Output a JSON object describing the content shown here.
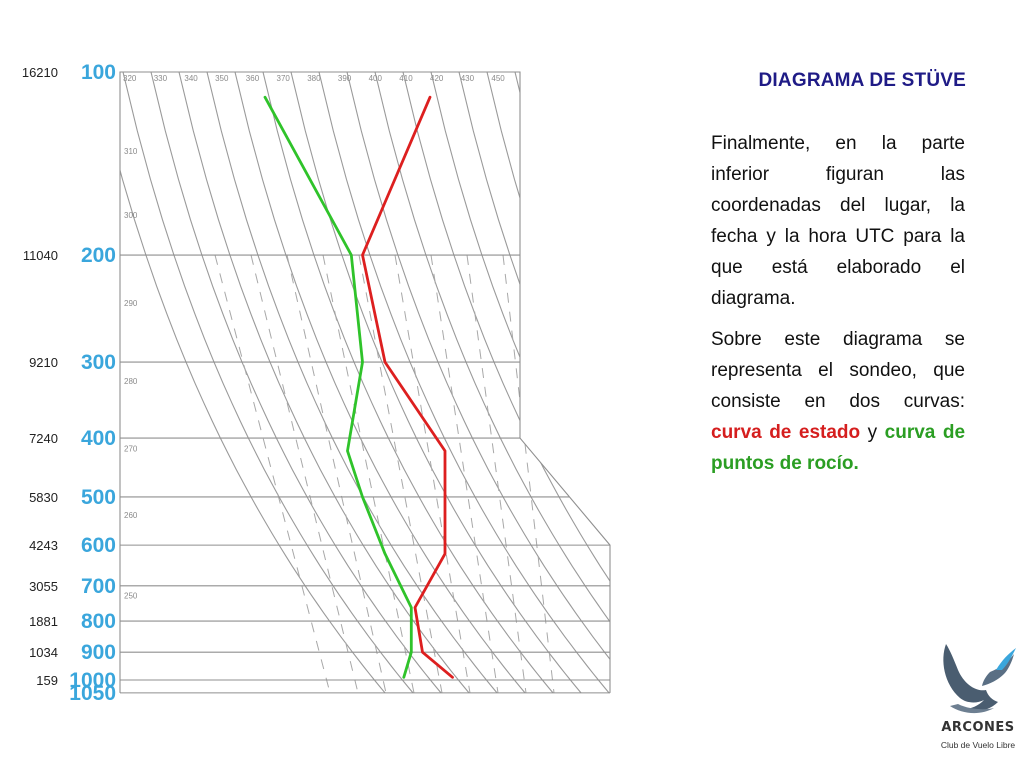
{
  "slide": {
    "title": "DIAGRAMA DE STÜVE",
    "paragraph1": "Finalmente, en la parte inferior figuran las coordenadas del lugar, la fecha y la hora UTC para la que está elaborado el diagrama.",
    "paragraph2_intro": "Sobre este diagrama se representa el sondeo, que consiste en dos curvas: ",
    "paragraph2_red": "curva de estado",
    "paragraph2_connector": " y ",
    "paragraph2_green": "curva de puntos de rocío",
    "paragraph2_end": ".",
    "colors": {
      "title": "#1f1b86",
      "red_term": "#d51e1e",
      "green_term": "#2b9e23"
    }
  },
  "logo": {
    "icon": "eagle-icon",
    "name": "ARCONES",
    "subtitle": "Club de Vuelo Libre"
  },
  "chart_data": {
    "type": "line",
    "y_axis": {
      "quantity": "pressure (hPa)",
      "scale": "log",
      "reversed": true,
      "tick_labels": [
        "100",
        "200",
        "300",
        "400",
        "500",
        "600",
        "700",
        "800",
        "900",
        "1000",
        "1050"
      ],
      "ticks": [
        100,
        200,
        300,
        400,
        500,
        600,
        700,
        800,
        900,
        1000,
        1050
      ],
      "color": "#3aa6dc"
    },
    "heights": [
      {
        "p": 100,
        "label": "16210"
      },
      {
        "p": 200,
        "label": "11040"
      },
      {
        "p": 300,
        "label": "9210"
      },
      {
        "p": 400,
        "label": "7240"
      },
      {
        "p": 500,
        "label": "5830"
      },
      {
        "p": 600,
        "label": "4243"
      },
      {
        "p": 700,
        "label": "3055"
      },
      {
        "p": 800,
        "label": "1881"
      },
      {
        "p": 900,
        "label": "1034"
      },
      {
        "p": 1000,
        "label": "159"
      }
    ],
    "top_theta_labels": [
      "320",
      "330",
      "340",
      "350",
      "360",
      "370",
      "380",
      "390",
      "400",
      "410",
      "420",
      "430",
      "450"
    ],
    "side_theta_labels": [
      {
        "label": "310",
        "p": 135
      },
      {
        "label": "300",
        "p": 172
      },
      {
        "label": "290",
        "p": 240
      },
      {
        "label": "280",
        "p": 322
      },
      {
        "label": "270",
        "p": 416
      },
      {
        "label": "260",
        "p": 535
      },
      {
        "label": "250",
        "p": 726
      }
    ],
    "grid": true,
    "grid_styles": {
      "isobars": "solid",
      "dry_adiabats": "solid curved",
      "saturation_lines": "dashed"
    },
    "series": [
      {
        "color": "#dd1f1f",
        "points": [
          {
            "p": 110,
            "t": -48
          },
          {
            "p": 200,
            "t": -66
          },
          {
            "p": 300,
            "t": -60
          },
          {
            "p": 420,
            "t": -44
          },
          {
            "p": 500,
            "t": -44
          },
          {
            "p": 620,
            "t": -44
          },
          {
            "p": 760,
            "t": -52
          },
          {
            "p": 900,
            "t": -50
          },
          {
            "p": 990,
            "t": -42
          }
        ]
      },
      {
        "color": "#2fc32a",
        "points": [
          {
            "p": 110,
            "t": -92
          },
          {
            "p": 200,
            "t": -69
          },
          {
            "p": 300,
            "t": -66
          },
          {
            "p": 420,
            "t": -70
          },
          {
            "p": 500,
            "t": -66
          },
          {
            "p": 620,
            "t": -60
          },
          {
            "p": 760,
            "t": -53
          },
          {
            "p": 900,
            "t": -53
          },
          {
            "p": 990,
            "t": -55
          }
        ]
      }
    ]
  }
}
